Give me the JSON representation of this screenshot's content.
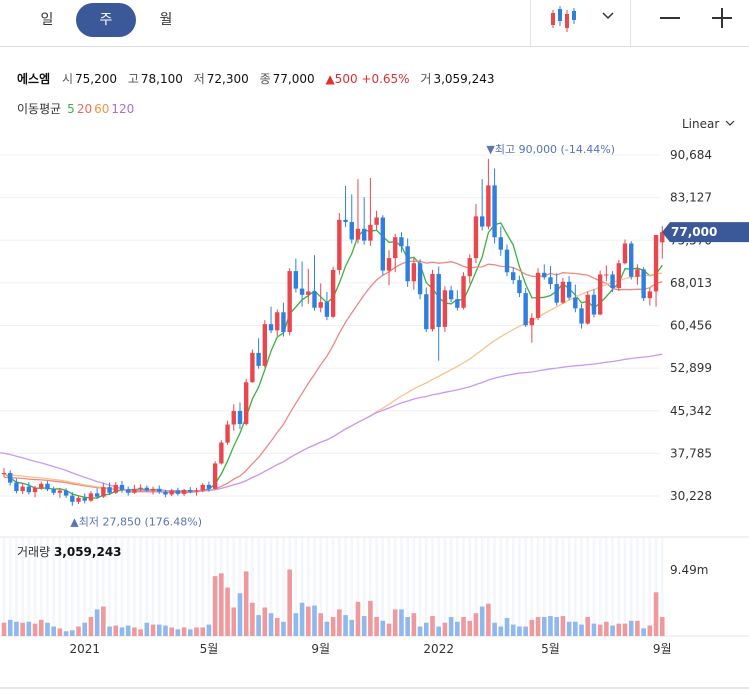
{
  "tabs": [
    {
      "label": "일"
    },
    {
      "label": "주"
    },
    {
      "label": "월"
    }
  ],
  "info": {
    "name": "에스엠",
    "open_label": "시",
    "open": "75,200",
    "high_label": "고",
    "high": "78,100",
    "low_label": "저",
    "low": "72,300",
    "close_label": "종",
    "close": "77,000",
    "change": "▲500 +0.65%",
    "volume_label": "거",
    "volume": "3,059,243"
  },
  "ma_legend": {
    "label": "이동평균",
    "items": [
      "5",
      "20",
      "60",
      "120"
    ]
  },
  "scale_label": "Linear",
  "volume_panel": {
    "label": "거래량",
    "value": "3,059,243"
  },
  "colors": {
    "up": "#e8484d",
    "down": "#2f7fe0",
    "ma5": "#3cb043",
    "ma20": "#ee8880",
    "ma60": "#f8c28c",
    "ma120": "#c89af5",
    "accent": "#3b5998"
  },
  "chart_data": {
    "type": "candlestick",
    "y_ticks": [
      "90,684",
      "83,127",
      "75,570",
      "68,013",
      "60,456",
      "52,899",
      "45,342",
      "37,785",
      "30,228"
    ],
    "x_ticks": [
      "2021",
      "5월",
      "9월",
      "2022",
      "5월",
      "9월"
    ],
    "ylim": [
      30228,
      90684
    ],
    "volume_tick": "9.49m",
    "current_price": "77,000",
    "max_annotation": "▼최고 90,000 (-14.44%)",
    "min_annotation": "▲최저 27,850 (176.48%)",
    "candles": [
      [
        34100,
        35200,
        33600,
        34300
      ],
      [
        34300,
        34800,
        32100,
        32600
      ],
      [
        32600,
        33300,
        30700,
        31100
      ],
      [
        31100,
        32400,
        30600,
        31900
      ],
      [
        31900,
        32700,
        30500,
        30900
      ],
      [
        30900,
        32000,
        30000,
        31700
      ],
      [
        31700,
        32800,
        31300,
        32400
      ],
      [
        32400,
        32900,
        31100,
        31400
      ],
      [
        31400,
        31900,
        30400,
        30800
      ],
      [
        30800,
        31700,
        29900,
        31200
      ],
      [
        31200,
        31600,
        29900,
        30300
      ],
      [
        30300,
        30900,
        28500,
        29200
      ],
      [
        29200,
        30300,
        28800,
        29900
      ],
      [
        29900,
        30700,
        28900,
        29400
      ],
      [
        29400,
        31100,
        29200,
        30700
      ],
      [
        30700,
        31600,
        29700,
        30100
      ],
      [
        30100,
        32500,
        29900,
        31800
      ],
      [
        31800,
        32600,
        30400,
        30800
      ],
      [
        30800,
        32700,
        30600,
        32200
      ],
      [
        32200,
        32900,
        30800,
        31300
      ],
      [
        31300,
        31900,
        30300,
        30800
      ],
      [
        30800,
        32200,
        30600,
        31500
      ],
      [
        31500,
        32300,
        31100,
        31700
      ],
      [
        31700,
        32100,
        31000,
        31200
      ],
      [
        31200,
        31900,
        30500,
        31500
      ],
      [
        31500,
        32100,
        30600,
        31000
      ],
      [
        31000,
        31300,
        30000,
        30500
      ],
      [
        30500,
        31500,
        30200,
        31200
      ],
      [
        31200,
        31700,
        30300,
        30600
      ],
      [
        30600,
        31500,
        30200,
        31300
      ],
      [
        31300,
        31800,
        30700,
        31000
      ],
      [
        31000,
        31700,
        30300,
        31200
      ],
      [
        31200,
        32500,
        30900,
        32200
      ],
      [
        32200,
        32800,
        31000,
        31500
      ],
      [
        31500,
        36400,
        31400,
        36000
      ],
      [
        36000,
        40100,
        35800,
        39700
      ],
      [
        39700,
        43600,
        39300,
        42900
      ],
      [
        42900,
        46500,
        41800,
        45300
      ],
      [
        45300,
        46800,
        42100,
        43000
      ],
      [
        43000,
        51000,
        42700,
        50400
      ],
      [
        50400,
        56200,
        50300,
        55600
      ],
      [
        55600,
        58200,
        52800,
        53300
      ],
      [
        53300,
        61400,
        53000,
        60700
      ],
      [
        60700,
        63800,
        59100,
        59600
      ],
      [
        59600,
        63300,
        58600,
        62800
      ],
      [
        62800,
        64500,
        58500,
        59300
      ],
      [
        59300,
        70600,
        58700,
        70100
      ],
      [
        70100,
        72300,
        66300,
        67000
      ],
      [
        67000,
        71800,
        63800,
        65900
      ],
      [
        65900,
        70500,
        64300,
        66500
      ],
      [
        66500,
        72900,
        63100,
        63600
      ],
      [
        63600,
        67900,
        62800,
        64600
      ],
      [
        64600,
        66400,
        61400,
        62000
      ],
      [
        62000,
        70900,
        61800,
        70300
      ],
      [
        70300,
        80400,
        69500,
        79200
      ],
      [
        79200,
        85200,
        77900,
        78800
      ],
      [
        78800,
        83700,
        75000,
        75700
      ],
      [
        75700,
        86400,
        75000,
        77600
      ],
      [
        77600,
        83200,
        74800,
        75500
      ],
      [
        75500,
        86600,
        74600,
        78300
      ],
      [
        78300,
        80800,
        77400,
        79600
      ],
      [
        79600,
        80000,
        69400,
        70200
      ],
      [
        70200,
        73800,
        67600,
        72400
      ],
      [
        72400,
        76700,
        69900,
        76100
      ],
      [
        76100,
        77000,
        73400,
        74500
      ],
      [
        74500,
        75900,
        67300,
        68300
      ],
      [
        68300,
        72400,
        66800,
        71500
      ],
      [
        71500,
        72200,
        65100,
        66000
      ],
      [
        66000,
        67200,
        59300,
        59800
      ],
      [
        59800,
        70300,
        59400,
        69600
      ],
      [
        69600,
        70900,
        54200,
        60200
      ],
      [
        60200,
        67400,
        59300,
        66700
      ],
      [
        66700,
        67500,
        64600,
        65100
      ],
      [
        65100,
        66700,
        63100,
        63600
      ],
      [
        63600,
        69900,
        63300,
        69200
      ],
      [
        69200,
        73100,
        67900,
        72400
      ],
      [
        72400,
        82000,
        71500,
        79800
      ],
      [
        79800,
        86400,
        77300,
        78000
      ],
      [
        78000,
        90000,
        77500,
        85300
      ],
      [
        85300,
        88300,
        75000,
        76100
      ],
      [
        76100,
        78000,
        72800,
        73900
      ],
      [
        73900,
        74800,
        69200,
        69900
      ],
      [
        69900,
        70800,
        67800,
        68500
      ],
      [
        68500,
        69300,
        65500,
        66200
      ],
      [
        66200,
        67100,
        60200,
        60500
      ],
      [
        60500,
        62600,
        57400,
        61800
      ],
      [
        61800,
        70600,
        61400,
        69800
      ],
      [
        69800,
        71300,
        68600,
        69000
      ],
      [
        69000,
        71000,
        66900,
        67800
      ],
      [
        67800,
        69700,
        64000,
        64500
      ],
      [
        64500,
        68900,
        64300,
        68200
      ],
      [
        68200,
        69200,
        65000,
        65400
      ],
      [
        65400,
        67700,
        62800,
        63500
      ],
      [
        63500,
        64300,
        59900,
        60800
      ],
      [
        60800,
        66500,
        60600,
        65900
      ],
      [
        65900,
        66900,
        61900,
        62400
      ],
      [
        62400,
        70200,
        62300,
        69500
      ],
      [
        69500,
        71100,
        68300,
        69500
      ],
      [
        69500,
        70100,
        66400,
        67100
      ],
      [
        67100,
        72100,
        66600,
        71500
      ],
      [
        71500,
        75700,
        71300,
        75000
      ],
      [
        75000,
        75400,
        68600,
        69100
      ],
      [
        69100,
        71300,
        67700,
        70400
      ],
      [
        70400,
        70800,
        64800,
        65300
      ],
      [
        65300,
        67100,
        64000,
        66500
      ],
      [
        66500,
        76500,
        63800,
        76500
      ],
      [
        75200,
        78100,
        72300,
        77000
      ]
    ],
    "volumes": [
      0.14,
      0.17,
      0.15,
      0.14,
      0.15,
      0.13,
      0.17,
      0.14,
      0.1,
      0.08,
      0.05,
      0.06,
      0.1,
      0.14,
      0.2,
      0.28,
      0.31,
      0.1,
      0.11,
      0.09,
      0.11,
      0.09,
      0.07,
      0.14,
      0.12,
      0.12,
      0.11,
      0.09,
      0.07,
      0.09,
      0.07,
      0.09,
      0.09,
      0.12,
      0.63,
      0.66,
      0.51,
      0.3,
      0.45,
      0.68,
      0.35,
      0.22,
      0.3,
      0.24,
      0.19,
      0.15,
      0.7,
      0.24,
      0.35,
      0.31,
      0.32,
      0.24,
      0.15,
      0.2,
      0.28,
      0.22,
      0.17,
      0.36,
      0.21,
      0.37,
      0.2,
      0.16,
      0.13,
      0.28,
      0.28,
      0.2,
      0.24,
      0.1,
      0.14,
      0.21,
      0.1,
      0.14,
      0.2,
      0.15,
      0.2,
      0.16,
      0.24,
      0.31,
      0.34,
      0.14,
      0.1,
      0.19,
      0.12,
      0.1,
      0.1,
      0.17,
      0.2,
      0.2,
      0.21,
      0.2,
      0.21,
      0.15,
      0.15,
      0.12,
      0.2,
      0.13,
      0.12,
      0.15,
      0.11,
      0.13,
      0.13,
      0.16,
      0.16,
      0.08,
      0.11,
      0.46,
      0.2
    ]
  }
}
